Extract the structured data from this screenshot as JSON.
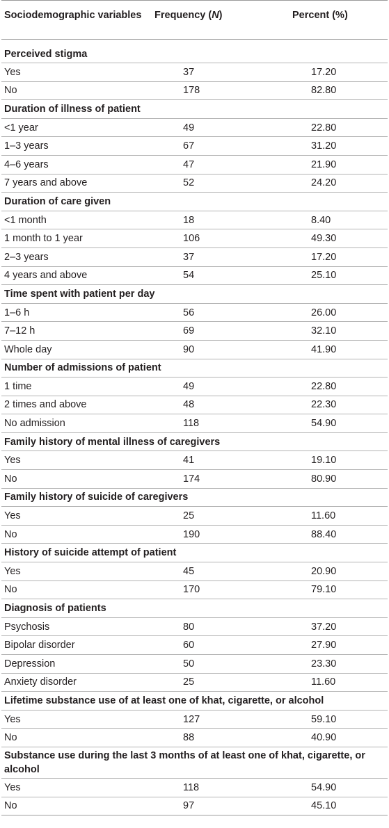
{
  "header": {
    "col1": "Sociodemographic variables",
    "col2_prefix": "Frequency (",
    "col2_italic": "N",
    "col2_suffix": ")",
    "col3": "Percent (%)"
  },
  "sections": [
    {
      "title": "Perceived stigma",
      "rows": [
        {
          "label": "Yes",
          "freq": "37",
          "pct": "17.20"
        },
        {
          "label": "No",
          "freq": "178",
          "pct": "82.80"
        }
      ]
    },
    {
      "title": "Duration of illness of patient",
      "rows": [
        {
          "label": "<1 year",
          "freq": "49",
          "pct": "22.80"
        },
        {
          "label": "1–3 years",
          "freq": "67",
          "pct": "31.20"
        },
        {
          "label": "4–6 years",
          "freq": "47",
          "pct": "21.90"
        },
        {
          "label": "7 years and above",
          "freq": "52",
          "pct": "24.20"
        }
      ]
    },
    {
      "title": "Duration of care given",
      "rows": [
        {
          "label": "<1 month",
          "freq": "18",
          "pct": "8.40"
        },
        {
          "label": "1 month to 1 year",
          "freq": "106",
          "pct": "49.30"
        },
        {
          "label": "2–3 years",
          "freq": "37",
          "pct": "17.20"
        },
        {
          "label": "4 years and above",
          "freq": "54",
          "pct": "25.10"
        }
      ]
    },
    {
      "title": "Time spent with patient per day",
      "rows": [
        {
          "label": "1–6 h",
          "freq": "56",
          "pct": "26.00"
        },
        {
          "label": "7–12 h",
          "freq": "69",
          "pct": "32.10"
        },
        {
          "label": "Whole day",
          "freq": "90",
          "pct": "41.90"
        }
      ]
    },
    {
      "title": "Number of admissions of patient",
      "rows": [
        {
          "label": "1 time",
          "freq": "49",
          "pct": "22.80"
        },
        {
          "label": "2 times and above",
          "freq": "48",
          "pct": "22.30"
        },
        {
          "label": "No admission",
          "freq": "118",
          "pct": "54.90"
        }
      ]
    },
    {
      "title": "Family history of mental illness of caregivers",
      "rows": [
        {
          "label": "Yes",
          "freq": "41",
          "pct": "19.10"
        },
        {
          "label": "No",
          "freq": "174",
          "pct": "80.90"
        }
      ]
    },
    {
      "title": "Family history of suicide of caregivers",
      "rows": [
        {
          "label": "Yes",
          "freq": "25",
          "pct": "11.60"
        },
        {
          "label": "No",
          "freq": "190",
          "pct": "88.40"
        }
      ]
    },
    {
      "title": "History of suicide attempt of patient",
      "rows": [
        {
          "label": "Yes",
          "freq": "45",
          "pct": "20.90"
        },
        {
          "label": "No",
          "freq": "170",
          "pct": "79.10"
        }
      ]
    },
    {
      "title": "Diagnosis of patients",
      "rows": [
        {
          "label": "Psychosis",
          "freq": "80",
          "pct": "37.20"
        },
        {
          "label": "Bipolar disorder",
          "freq": "60",
          "pct": "27.90"
        },
        {
          "label": "Depression",
          "freq": "50",
          "pct": "23.30"
        },
        {
          "label": "Anxiety disorder",
          "freq": "25",
          "pct": "11.60"
        }
      ]
    },
    {
      "title": "Lifetime substance use of at least one of khat, cigarette, or alcohol",
      "rows": [
        {
          "label": "Yes",
          "freq": "127",
          "pct": "59.10"
        },
        {
          "label": "No",
          "freq": "88",
          "pct": "40.90"
        }
      ]
    },
    {
      "title": "Substance use during the last 3 months of at least one of khat, cigarette, or alcohol",
      "multiline": true,
      "rows": [
        {
          "label": "Yes",
          "freq": "118",
          "pct": "54.90"
        },
        {
          "label": "No",
          "freq": "97",
          "pct": "45.10"
        }
      ]
    }
  ]
}
